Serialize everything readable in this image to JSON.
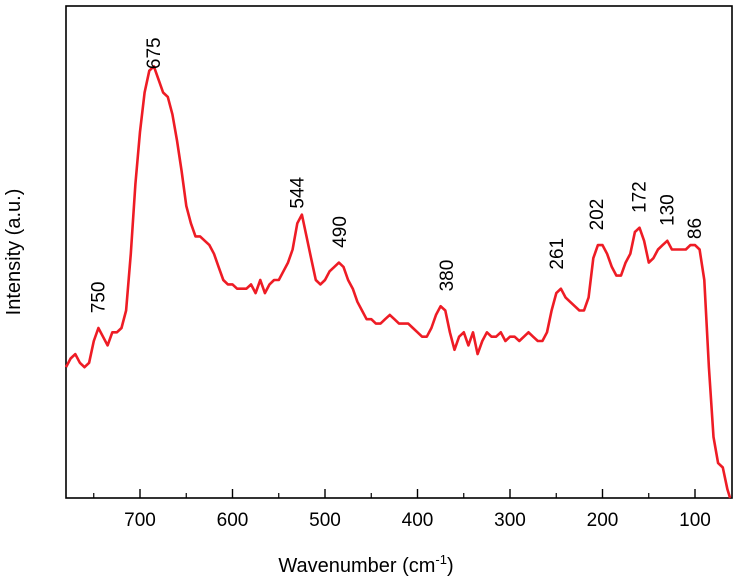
{
  "chart_data": {
    "type": "line",
    "title": "",
    "xlabel": "Wavenumber (cm",
    "xlabel_sup": "-1",
    "xlabel_close": ")",
    "ylabel": "Intensity (a.u.)",
    "xlim": [
      780,
      60
    ],
    "x_reversed": true,
    "y_ticks_shown": false,
    "grid": false,
    "x_ticks": [
      700,
      600,
      500,
      400,
      300,
      200,
      100
    ],
    "x_tick_labels": [
      "700",
      "600",
      "500",
      "400",
      "300",
      "200",
      "100"
    ],
    "line_color": "#ee1c25",
    "peak_labels": [
      {
        "text": "750",
        "x": 745,
        "y": 0.41
      },
      {
        "text": "675",
        "x": 685,
        "y": 0.97
      },
      {
        "text": "544",
        "x": 530,
        "y": 0.65
      },
      {
        "text": "490",
        "x": 484,
        "y": 0.56
      },
      {
        "text": "380",
        "x": 368,
        "y": 0.46
      },
      {
        "text": "261",
        "x": 249,
        "y": 0.51
      },
      {
        "text": "202",
        "x": 206,
        "y": 0.6
      },
      {
        "text": "172",
        "x": 160,
        "y": 0.64
      },
      {
        "text": "130",
        "x": 130,
        "y": 0.61
      },
      {
        "text": "86",
        "x": 100,
        "y": 0.58
      }
    ],
    "series": [
      {
        "x": [
          780,
          775,
          770,
          765,
          760,
          755,
          750,
          745,
          740,
          735,
          730,
          725,
          720,
          715,
          710,
          705,
          700,
          695,
          690,
          685,
          680,
          675,
          670,
          665,
          660,
          655,
          650,
          645,
          640,
          635,
          630,
          625,
          620,
          615,
          610,
          605,
          600,
          595,
          590,
          585,
          580,
          575,
          570,
          565,
          560,
          555,
          550,
          545,
          540,
          535,
          530,
          525,
          520,
          515,
          510,
          505,
          500,
          495,
          490,
          485,
          480,
          475,
          470,
          465,
          460,
          455,
          450,
          445,
          440,
          435,
          430,
          425,
          420,
          415,
          410,
          405,
          400,
          395,
          390,
          385,
          380,
          375,
          370,
          365,
          360,
          355,
          350,
          345,
          340,
          335,
          330,
          325,
          320,
          315,
          310,
          305,
          300,
          295,
          290,
          285,
          280,
          275,
          270,
          265,
          260,
          255,
          250,
          245,
          240,
          235,
          230,
          225,
          220,
          215,
          210,
          205,
          200,
          195,
          190,
          185,
          180,
          175,
          170,
          165,
          160,
          155,
          150,
          145,
          140,
          135,
          130,
          125,
          120,
          115,
          110,
          105,
          100,
          95,
          90,
          85,
          80,
          75,
          70,
          65,
          62
        ],
        "y": [
          0.3,
          0.32,
          0.33,
          0.31,
          0.3,
          0.31,
          0.36,
          0.39,
          0.37,
          0.35,
          0.38,
          0.38,
          0.39,
          0.43,
          0.56,
          0.72,
          0.84,
          0.93,
          0.98,
          0.99,
          0.96,
          0.93,
          0.92,
          0.88,
          0.82,
          0.75,
          0.67,
          0.63,
          0.6,
          0.6,
          0.59,
          0.58,
          0.56,
          0.53,
          0.5,
          0.49,
          0.49,
          0.48,
          0.48,
          0.48,
          0.49,
          0.47,
          0.5,
          0.47,
          0.49,
          0.5,
          0.5,
          0.52,
          0.54,
          0.57,
          0.63,
          0.65,
          0.6,
          0.55,
          0.5,
          0.49,
          0.5,
          0.52,
          0.53,
          0.54,
          0.53,
          0.5,
          0.48,
          0.45,
          0.43,
          0.41,
          0.41,
          0.4,
          0.4,
          0.41,
          0.42,
          0.41,
          0.4,
          0.4,
          0.4,
          0.39,
          0.38,
          0.37,
          0.37,
          0.39,
          0.42,
          0.44,
          0.43,
          0.38,
          0.34,
          0.37,
          0.38,
          0.35,
          0.38,
          0.33,
          0.36,
          0.38,
          0.37,
          0.37,
          0.38,
          0.36,
          0.37,
          0.37,
          0.36,
          0.37,
          0.38,
          0.37,
          0.36,
          0.36,
          0.38,
          0.43,
          0.47,
          0.48,
          0.46,
          0.45,
          0.44,
          0.43,
          0.43,
          0.46,
          0.55,
          0.58,
          0.58,
          0.56,
          0.53,
          0.51,
          0.51,
          0.54,
          0.56,
          0.61,
          0.62,
          0.59,
          0.54,
          0.55,
          0.57,
          0.58,
          0.59,
          0.57,
          0.57,
          0.57,
          0.57,
          0.58,
          0.58,
          0.57,
          0.5,
          0.3,
          0.14,
          0.08,
          0.07,
          0.02,
          0.0
        ]
      }
    ]
  }
}
